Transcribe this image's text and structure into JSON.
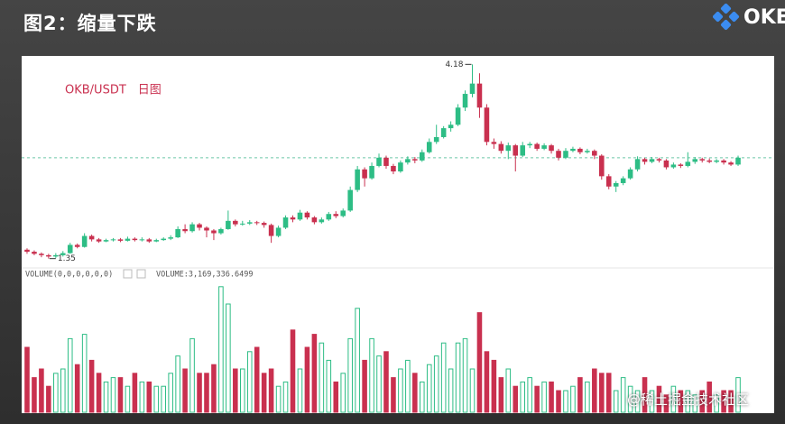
{
  "slide_title": "图2：缩量下跌",
  "logo": "OKE",
  "watermark": "@稀土掘金技术社区",
  "chart_data": {
    "type": "candlestick",
    "title": "OKB/USDT　日图",
    "volume_legend": "VOLUME(0,0,0,0,0,0)",
    "volume_value": "VOLUME:3,169,336.6499",
    "up_color": "#2dbd85",
    "down_color": "#c9304f",
    "ylim": [
      1.28,
      4.25
    ],
    "vlim": [
      0,
      30
    ],
    "open": [
      1.48,
      1.45,
      1.42,
      1.4,
      1.38,
      1.4,
      1.43,
      1.55,
      1.52,
      1.68,
      1.63,
      1.6,
      1.62,
      1.63,
      1.61,
      1.64,
      1.62,
      1.63,
      1.6,
      1.62,
      1.64,
      1.66,
      1.78,
      1.75,
      1.85,
      1.8,
      1.76,
      1.72,
      1.78,
      1.9,
      1.85,
      1.86,
      1.88,
      1.87,
      1.84,
      1.68,
      1.8,
      1.95,
      1.92,
      2.02,
      1.95,
      1.88,
      1.92,
      2.0,
      1.97,
      2.05,
      2.35,
      2.65,
      2.52,
      2.7,
      2.82,
      2.7,
      2.62,
      2.75,
      2.8,
      2.78,
      2.9,
      3.05,
      3.12,
      3.25,
      3.3,
      3.55,
      3.75,
      3.9,
      3.55,
      3.05,
      3.02,
      2.92,
      3.0,
      2.85,
      3.0,
      3.02,
      2.95,
      3.0,
      2.92,
      2.82,
      2.92,
      2.95,
      2.9,
      2.92,
      2.85,
      2.55,
      2.4,
      2.45,
      2.52,
      2.65,
      2.8,
      2.76,
      2.8,
      2.78,
      2.68,
      2.72,
      2.7,
      2.76,
      2.8,
      2.78,
      2.76,
      2.78,
      2.75,
      2.72
    ],
    "high": [
      1.5,
      1.47,
      1.44,
      1.42,
      1.43,
      1.46,
      1.58,
      1.57,
      1.72,
      1.7,
      1.65,
      1.64,
      1.65,
      1.65,
      1.67,
      1.66,
      1.66,
      1.65,
      1.64,
      1.66,
      1.69,
      1.82,
      1.85,
      1.88,
      1.87,
      1.82,
      1.78,
      1.8,
      2.05,
      1.92,
      1.9,
      1.91,
      1.9,
      1.89,
      1.86,
      1.83,
      1.98,
      1.98,
      2.06,
      2.04,
      1.97,
      1.95,
      2.03,
      2.04,
      2.08,
      2.4,
      2.7,
      2.68,
      2.75,
      2.88,
      2.85,
      2.73,
      2.78,
      2.84,
      2.83,
      2.94,
      3.1,
      3.3,
      3.28,
      3.35,
      3.6,
      3.8,
      4.18,
      4.05,
      3.6,
      3.1,
      3.06,
      3.04,
      3.02,
      3.05,
      3.05,
      3.04,
      3.03,
      3.02,
      2.95,
      2.96,
      2.98,
      2.97,
      2.95,
      2.94,
      2.87,
      2.58,
      2.48,
      2.55,
      2.68,
      2.84,
      2.82,
      2.83,
      2.82,
      2.8,
      2.75,
      2.74,
      2.9,
      2.83,
      2.82,
      2.81,
      2.8,
      2.8,
      2.77,
      2.85
    ],
    "low": [
      1.42,
      1.4,
      1.37,
      1.35,
      1.36,
      1.38,
      1.42,
      1.5,
      1.51,
      1.6,
      1.58,
      1.59,
      1.6,
      1.59,
      1.6,
      1.6,
      1.6,
      1.58,
      1.59,
      1.61,
      1.62,
      1.65,
      1.72,
      1.73,
      1.76,
      1.66,
      1.62,
      1.7,
      1.77,
      1.82,
      1.83,
      1.84,
      1.84,
      1.8,
      1.58,
      1.66,
      1.78,
      1.88,
      1.9,
      1.92,
      1.85,
      1.86,
      1.9,
      1.94,
      1.95,
      2.03,
      2.32,
      2.4,
      2.5,
      2.68,
      2.66,
      2.58,
      2.6,
      2.72,
      2.74,
      2.76,
      2.88,
      3.02,
      3.1,
      3.2,
      3.28,
      3.5,
      3.7,
      3.4,
      3.0,
      2.95,
      2.88,
      2.8,
      2.62,
      2.83,
      2.96,
      2.92,
      2.93,
      2.88,
      2.78,
      2.8,
      2.9,
      2.87,
      2.88,
      2.8,
      2.5,
      2.36,
      2.32,
      2.42,
      2.5,
      2.62,
      2.72,
      2.74,
      2.75,
      2.65,
      2.66,
      2.67,
      2.68,
      2.73,
      2.75,
      2.74,
      2.74,
      2.72,
      2.7,
      2.7
    ],
    "close": [
      1.45,
      1.42,
      1.4,
      1.38,
      1.4,
      1.43,
      1.55,
      1.52,
      1.68,
      1.63,
      1.6,
      1.62,
      1.63,
      1.61,
      1.64,
      1.62,
      1.63,
      1.6,
      1.62,
      1.64,
      1.66,
      1.78,
      1.75,
      1.85,
      1.8,
      1.76,
      1.72,
      1.78,
      1.9,
      1.85,
      1.86,
      1.88,
      1.87,
      1.84,
      1.68,
      1.8,
      1.95,
      1.92,
      2.02,
      1.95,
      1.88,
      1.92,
      2.0,
      1.97,
      2.05,
      2.35,
      2.65,
      2.52,
      2.7,
      2.82,
      2.7,
      2.62,
      2.75,
      2.8,
      2.78,
      2.9,
      3.05,
      3.12,
      3.25,
      3.3,
      3.55,
      3.75,
      3.9,
      3.55,
      3.05,
      3.02,
      2.92,
      3.0,
      2.85,
      3.0,
      3.02,
      2.95,
      3.0,
      2.92,
      2.82,
      2.92,
      2.95,
      2.9,
      2.92,
      2.85,
      2.55,
      2.4,
      2.45,
      2.52,
      2.65,
      2.8,
      2.76,
      2.8,
      2.78,
      2.68,
      2.72,
      2.7,
      2.76,
      2.8,
      2.78,
      2.76,
      2.78,
      2.75,
      2.72,
      2.82
    ],
    "volume": [
      15,
      8,
      10,
      6,
      9,
      10,
      17,
      11,
      18,
      12,
      9,
      7,
      8,
      8,
      6,
      9,
      7,
      7,
      6,
      6,
      9,
      13,
      10,
      17,
      9,
      9,
      11,
      29,
      25,
      10,
      10,
      14,
      15,
      9,
      10,
      6,
      7,
      19,
      10,
      15,
      18,
      16,
      12,
      7,
      9,
      17,
      24,
      12,
      17,
      13,
      14,
      8,
      10,
      12,
      9,
      7,
      11,
      13,
      16,
      10,
      16,
      17,
      10,
      23,
      14,
      12,
      8,
      10,
      6,
      7,
      8,
      6,
      7,
      7,
      5,
      5,
      6,
      8,
      7,
      10,
      9,
      9,
      5,
      8,
      6,
      5,
      8,
      5,
      6,
      4,
      6,
      5,
      5,
      4,
      5,
      7,
      4,
      5,
      5,
      8
    ]
  }
}
